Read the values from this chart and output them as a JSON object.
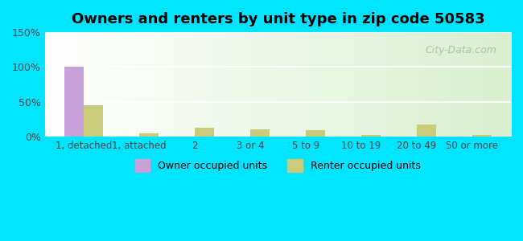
{
  "title": "Owners and renters by unit type in zip code 50583",
  "categories": [
    "1, detached",
    "1, attached",
    "2",
    "3 or 4",
    "5 to 9",
    "10 to 19",
    "20 to 49",
    "50 or more"
  ],
  "owner_values": [
    100,
    0,
    0,
    0,
    0,
    0,
    0,
    0
  ],
  "renter_values": [
    45,
    5,
    13,
    11,
    10,
    2,
    17,
    2
  ],
  "owner_color": "#c8a0d8",
  "renter_color": "#c8cc7a",
  "background_color": "#00e5ff",
  "ylim": [
    0,
    150
  ],
  "yticks": [
    0,
    50,
    100,
    150
  ],
  "ytick_labels": [
    "0%",
    "50%",
    "100%",
    "150%"
  ],
  "bar_width": 0.35,
  "legend_labels": [
    "Owner occupied units",
    "Renter occupied units"
  ],
  "watermark": "City-Data.com"
}
